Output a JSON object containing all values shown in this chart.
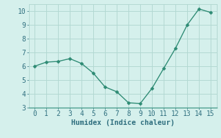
{
  "x": [
    0,
    1,
    2,
    3,
    4,
    5,
    6,
    7,
    8,
    9,
    10,
    11,
    12,
    13,
    14,
    15
  ],
  "y": [
    6.0,
    6.3,
    6.35,
    6.55,
    6.2,
    5.5,
    4.5,
    4.15,
    3.35,
    3.3,
    4.4,
    5.85,
    7.3,
    9.0,
    10.15,
    9.9
  ],
  "xlabel": "Humidex (Indice chaleur)",
  "xlim": [
    -0.5,
    15.5
  ],
  "ylim": [
    3,
    10.5
  ],
  "xticks": [
    0,
    1,
    2,
    3,
    4,
    5,
    6,
    7,
    8,
    9,
    10,
    11,
    12,
    13,
    14,
    15
  ],
  "yticks": [
    3,
    4,
    5,
    6,
    7,
    8,
    9,
    10
  ],
  "line_color": "#2e8b74",
  "marker": "D",
  "marker_size": 2.5,
  "background_color": "#d5f0ec",
  "grid_color": "#b2d8d2",
  "axis_label_color": "#2e6e7e",
  "tick_label_color": "#2e6e7e",
  "xlabel_fontsize": 7.5,
  "tick_fontsize": 7
}
